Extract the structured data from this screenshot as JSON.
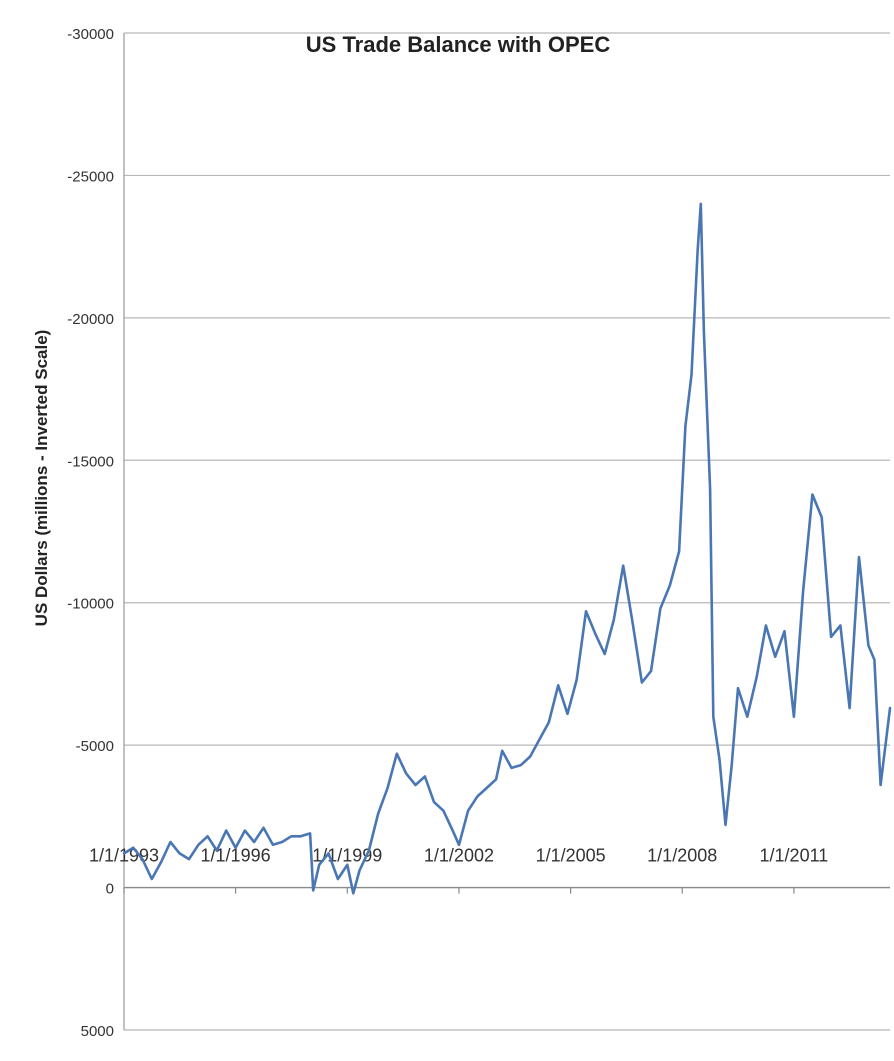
{
  "chart_data": {
    "type": "line",
    "title": "US Trade Balance with OPEC",
    "ylabel": "US Dollars  (millions - Inverted Scale)",
    "xlabel": "",
    "y_inverted": true,
    "ylim": [
      -30000,
      5000
    ],
    "yticks": [
      -30000,
      -25000,
      -20000,
      -15000,
      -10000,
      -5000,
      0,
      5000
    ],
    "ytick_labels": [
      "-30000",
      "-25000",
      "-20000",
      "-15000",
      "-10000",
      "-5000",
      "0",
      "5000"
    ],
    "xlim": [
      "1993-01-01",
      "2013-08-01"
    ],
    "xticks": [
      "1993-01-01",
      "1996-01-01",
      "1999-01-01",
      "2002-01-01",
      "2005-01-01",
      "2008-01-01",
      "2011-01-01"
    ],
    "xtick_labels": [
      "1/1/1993",
      "1/1/1996",
      "1/1/1999",
      "1/1/2002",
      "1/1/2005",
      "1/1/2008",
      "1/1/2011"
    ],
    "grid": true,
    "line_color": "#4a76b4",
    "series": [
      {
        "x": [
          "1993-01-01",
          "1993-04-01",
          "1993-07-01",
          "1993-10-01",
          "1994-01-01",
          "1994-04-01",
          "1994-07-01",
          "1994-10-01",
          "1995-01-01",
          "1995-04-01",
          "1995-07-01",
          "1995-10-01",
          "1996-01-01",
          "1996-04-01",
          "1996-07-01",
          "1996-10-01",
          "1997-01-01",
          "1997-04-01",
          "1997-07-01",
          "1997-10-01",
          "1998-01-01",
          "1998-02-01",
          "1998-04-01",
          "1998-07-01",
          "1998-10-01",
          "1999-01-01",
          "1999-03-01",
          "1999-05-01",
          "1999-08-01",
          "1999-11-01",
          "2000-02-01",
          "2000-05-01",
          "2000-08-01",
          "2000-11-01",
          "2001-02-01",
          "2001-05-01",
          "2001-08-01",
          "2001-11-01",
          "2002-01-01",
          "2002-04-01",
          "2002-07-01",
          "2002-10-01",
          "2003-01-01",
          "2003-03-01",
          "2003-06-01",
          "2003-09-01",
          "2003-12-01",
          "2004-03-01",
          "2004-06-01",
          "2004-09-01",
          "2004-12-01",
          "2005-03-01",
          "2005-06-01",
          "2005-09-01",
          "2005-12-01",
          "2006-03-01",
          "2006-06-01",
          "2006-09-01",
          "2006-12-01",
          "2007-03-01",
          "2007-06-01",
          "2007-09-01",
          "2007-12-01",
          "2008-02-01",
          "2008-04-01",
          "2008-06-01",
          "2008-07-01",
          "2008-08-01",
          "2008-10-01",
          "2008-11-01",
          "2009-01-01",
          "2009-03-01",
          "2009-05-01",
          "2009-07-01",
          "2009-10-01",
          "2010-01-01",
          "2010-04-01",
          "2010-07-01",
          "2010-10-01",
          "2011-01-01",
          "2011-04-01",
          "2011-07-01",
          "2011-10-01",
          "2012-01-01",
          "2012-04-01",
          "2012-07-01",
          "2012-10-01",
          "2013-01-01",
          "2013-03-01",
          "2013-05-01",
          "2013-08-01"
        ],
        "values": [
          -1200,
          -1400,
          -1000,
          -300,
          -900,
          -1600,
          -1200,
          -1000,
          -1500,
          -1800,
          -1300,
          -2000,
          -1400,
          -2000,
          -1600,
          -2100,
          -1500,
          -1600,
          -1800,
          -1800,
          -1900,
          100,
          -800,
          -1200,
          -300,
          -800,
          200,
          -600,
          -1300,
          -2600,
          -3500,
          -4700,
          -4000,
          -3600,
          -3900,
          -3000,
          -2700,
          -2000,
          -1500,
          -2700,
          -3200,
          -3500,
          -3800,
          -4800,
          -4200,
          -4300,
          -4600,
          -5200,
          -5800,
          -7100,
          -6100,
          -7300,
          -9700,
          -8900,
          -8200,
          -9400,
          -11300,
          -9300,
          -7200,
          -7600,
          -9800,
          -10600,
          -11800,
          -16200,
          -18000,
          -22400,
          -24000,
          -19500,
          -14000,
          -6000,
          -4500,
          -2200,
          -4300,
          -7000,
          -6000,
          -7400,
          -9200,
          -8100,
          -9000,
          -6000,
          -10400,
          -13800,
          -13000,
          -8800,
          -9200,
          -6300,
          -11600,
          -8500,
          -8000,
          -3600,
          -6300
        ]
      }
    ]
  }
}
